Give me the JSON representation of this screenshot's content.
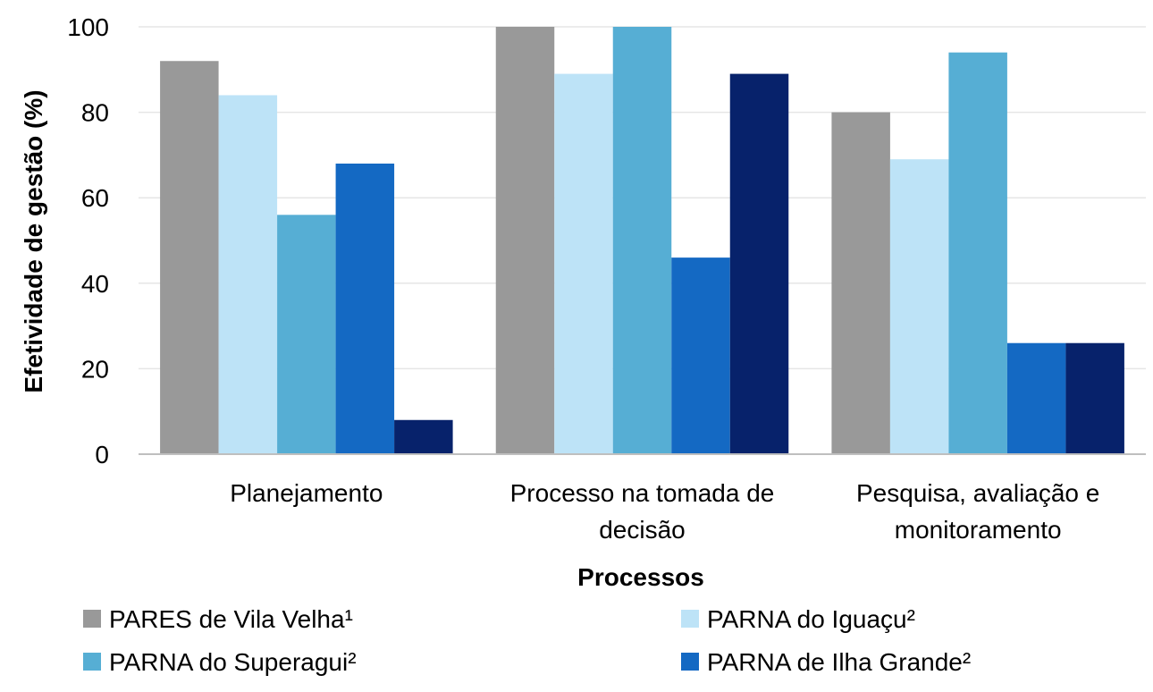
{
  "chart_data": {
    "type": "bar",
    "title": "",
    "xlabel": "Processos",
    "ylabel": "Efetividade de gestão (%)",
    "ylim": [
      0,
      100
    ],
    "yticks": [
      0,
      20,
      40,
      60,
      80,
      100
    ],
    "grid": true,
    "legend_position": "bottom",
    "categories": [
      [
        "Planejamento"
      ],
      [
        "Processo na tomada de",
        "decisão"
      ],
      [
        "Pesquisa, avaliação e",
        "monitoramento"
      ]
    ],
    "series": [
      {
        "name": "PARES de Vila Velha¹",
        "color": "#999999",
        "values": [
          92,
          100,
          80
        ]
      },
      {
        "name": "PARNA do Iguaçu²",
        "color": "#BDE3F7",
        "values": [
          84,
          89,
          69
        ]
      },
      {
        "name": "PARNA do Superagui²",
        "color": "#56AED4",
        "values": [
          56,
          100,
          94
        ]
      },
      {
        "name": "PARNA de Ilha Grande²",
        "color": "#1469C3",
        "values": [
          68,
          46,
          26
        ]
      },
      {
        "name": "",
        "color": "#07226B",
        "values": [
          8,
          89,
          26
        ]
      }
    ]
  }
}
